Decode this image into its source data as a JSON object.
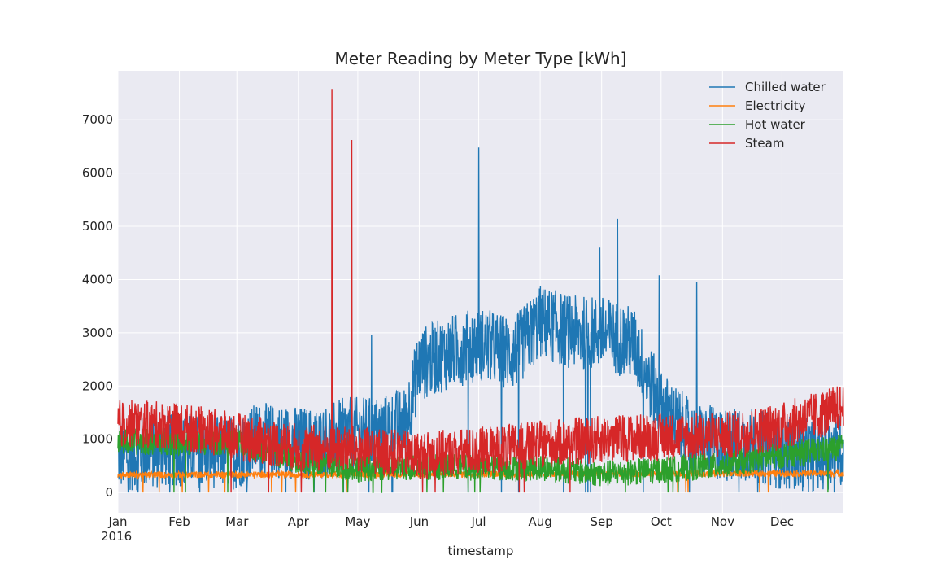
{
  "chart_data": {
    "type": "line",
    "title": "Meter Reading by Meter Type [kWh]",
    "xlabel": "timestamp",
    "ylabel": "",
    "year_label": "2016",
    "ylim": [
      -380,
      7920
    ],
    "xlim_days": [
      0,
      366
    ],
    "yticks": [
      0,
      1000,
      2000,
      3000,
      4000,
      5000,
      6000,
      7000
    ],
    "month_ticks": [
      {
        "label": "Jan",
        "day": 0
      },
      {
        "label": "Feb",
        "day": 31
      },
      {
        "label": "Mar",
        "day": 60
      },
      {
        "label": "Apr",
        "day": 91
      },
      {
        "label": "May",
        "day": 121
      },
      {
        "label": "Jun",
        "day": 152
      },
      {
        "label": "Jul",
        "day": 182
      },
      {
        "label": "Aug",
        "day": 213
      },
      {
        "label": "Sep",
        "day": 244
      },
      {
        "label": "Oct",
        "day": 274
      },
      {
        "label": "Nov",
        "day": 305
      },
      {
        "label": "Dec",
        "day": 335
      }
    ],
    "grid": true,
    "legend_position": "top-right",
    "series": [
      {
        "name": "Chilled water",
        "color": "#1f77b4",
        "baseline_days": [
          0,
          30,
          60,
          70,
          85,
          100,
          115,
          130,
          145,
          152,
          165,
          182,
          200,
          213,
          230,
          244,
          260,
          274,
          290,
          305,
          320,
          335,
          350,
          366
        ],
        "baseline_values": [
          700,
          800,
          750,
          1000,
          950,
          900,
          1100,
          1100,
          1300,
          2400,
          2600,
          2800,
          2600,
          3200,
          3000,
          3000,
          2800,
          1600,
          1000,
          900,
          900,
          750,
          700,
          800
        ],
        "amplitude": 700,
        "spikes": [
          {
            "day": 182,
            "value": 6480
          },
          {
            "day": 243,
            "value": 4600
          },
          {
            "day": 252,
            "value": 5140
          },
          {
            "day": 273,
            "value": 4080
          },
          {
            "day": 292,
            "value": 3950
          },
          {
            "day": 128,
            "value": 2960
          }
        ]
      },
      {
        "name": "Electricity",
        "color": "#ff7f0e",
        "baseline_days": [
          0,
          366
        ],
        "baseline_values": [
          330,
          360
        ],
        "amplitude": 60,
        "spikes": []
      },
      {
        "name": "Hot water",
        "color": "#2ca02c",
        "baseline_days": [
          0,
          30,
          60,
          91,
          121,
          152,
          182,
          213,
          244,
          274,
          305,
          335,
          366
        ],
        "baseline_values": [
          950,
          950,
          950,
          600,
          450,
          480,
          470,
          470,
          350,
          420,
          520,
          700,
          850
        ],
        "amplitude": 250,
        "spikes": []
      },
      {
        "name": "Steam",
        "color": "#d62728",
        "baseline_days": [
          0,
          30,
          60,
          91,
          121,
          152,
          182,
          213,
          244,
          274,
          305,
          335,
          366
        ],
        "baseline_values": [
          1300,
          1250,
          1050,
          850,
          800,
          700,
          780,
          900,
          1000,
          1050,
          1050,
          1250,
          1600
        ],
        "amplitude": 450,
        "spikes": [
          {
            "day": 108,
            "value": 7580
          },
          {
            "day": 118,
            "value": 6620
          }
        ]
      }
    ]
  }
}
